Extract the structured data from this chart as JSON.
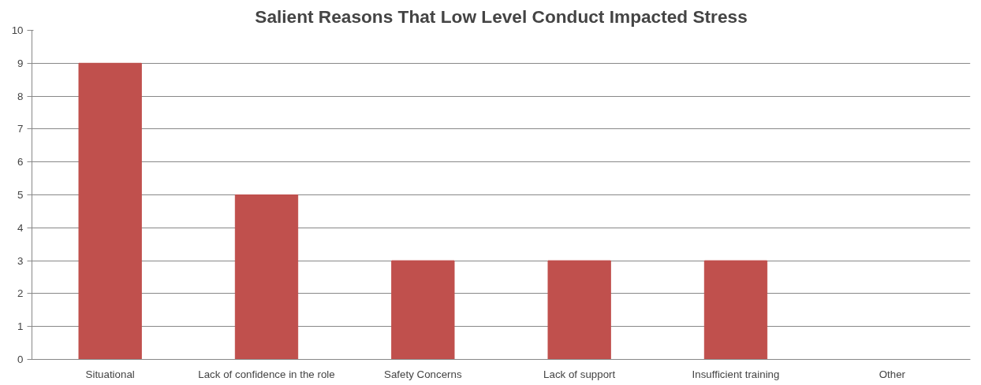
{
  "chart_data": {
    "type": "bar",
    "title": "Salient Reasons That Low Level Conduct Impacted Stress",
    "categories": [
      "Situational",
      "Lack of confidence in the role",
      "Safety Concerns",
      "Lack of support",
      "Insufficient training",
      "Other"
    ],
    "values": [
      9,
      5,
      3,
      3,
      3,
      0
    ],
    "color": "#c0504d",
    "ylim": [
      0,
      10
    ],
    "yticks": [
      0,
      1,
      2,
      3,
      4,
      5,
      6,
      7,
      8,
      9,
      10
    ],
    "grid": "y"
  }
}
